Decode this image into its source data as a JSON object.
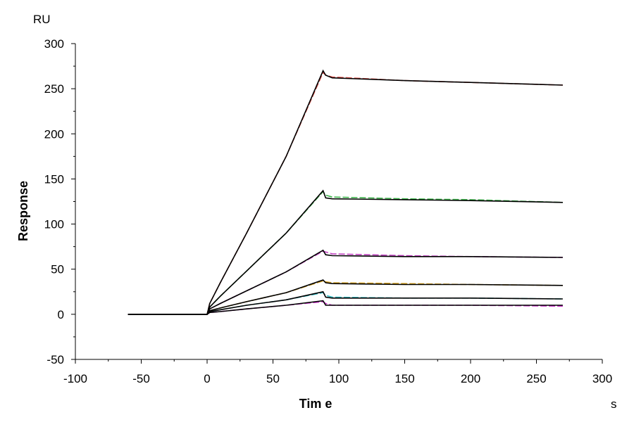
{
  "chart_data": {
    "type": "line",
    "title": "",
    "xlabel": "Tim e",
    "ylabel": "Response",
    "x_unit": "s",
    "y_unit": "RU",
    "xlim": [
      -100,
      300
    ],
    "ylim": [
      -50,
      300
    ],
    "x_ticks": [
      -100,
      -50,
      0,
      50,
      100,
      150,
      200,
      250,
      300
    ],
    "y_ticks": [
      -50,
      0,
      50,
      100,
      150,
      200,
      250,
      300
    ],
    "x_tick_labels": [
      "-100",
      "-50",
      "0",
      "50",
      "100",
      "150",
      "200",
      "250",
      "300"
    ],
    "y_tick_labels": [
      "-50",
      "0",
      "50",
      "100",
      "150",
      "200",
      "250",
      "300"
    ],
    "grid": false,
    "legend": "none",
    "series": [
      {
        "color": "#e0504a",
        "x": [
          -60,
          0,
          2,
          10,
          30,
          60,
          88,
          90,
          95,
          150,
          200,
          270
        ],
        "y": [
          0,
          0,
          12,
          35,
          90,
          175,
          268,
          265,
          263,
          259,
          257,
          254
        ]
      },
      {
        "color": "#3cb34a",
        "x": [
          -60,
          0,
          2,
          10,
          30,
          60,
          88,
          90,
          95,
          150,
          200,
          270
        ],
        "y": [
          0,
          0,
          8,
          20,
          48,
          90,
          136,
          132,
          130,
          128,
          127,
          124
        ]
      },
      {
        "color": "#c040c0",
        "x": [
          -60,
          0,
          2,
          10,
          30,
          60,
          88,
          90,
          95,
          150,
          200,
          270
        ],
        "y": [
          0,
          0,
          6,
          12,
          26,
          47,
          70,
          69,
          67,
          65,
          64,
          63
        ]
      },
      {
        "color": "#d4a020",
        "x": [
          -60,
          0,
          2,
          10,
          30,
          60,
          88,
          90,
          95,
          150,
          200,
          270
        ],
        "y": [
          0,
          0,
          4,
          7,
          14,
          24,
          37,
          36,
          35,
          34,
          33,
          32
        ]
      },
      {
        "color": "#30b8c0",
        "x": [
          -60,
          0,
          2,
          10,
          30,
          60,
          88,
          90,
          95,
          150,
          200,
          270
        ],
        "y": [
          0,
          0,
          3,
          5,
          10,
          16,
          24,
          21,
          19,
          18,
          18,
          17
        ]
      },
      {
        "color": "#cc30cc",
        "x": [
          -60,
          0,
          2,
          10,
          30,
          60,
          88,
          90,
          95,
          150,
          200,
          270
        ],
        "y": [
          0,
          0,
          2,
          3,
          6,
          10,
          14,
          12,
          10,
          10,
          10,
          9
        ]
      }
    ],
    "fits": [
      {
        "color": "#000000",
        "x": [
          -60,
          0,
          2,
          10,
          30,
          60,
          88,
          90,
          95,
          150,
          200,
          270
        ],
        "y": [
          0,
          0,
          12,
          35,
          90,
          175,
          270,
          265,
          262,
          259,
          257,
          254
        ]
      },
      {
        "color": "#000000",
        "x": [
          -60,
          0,
          2,
          10,
          30,
          60,
          88,
          90,
          95,
          150,
          200,
          270
        ],
        "y": [
          0,
          0,
          8,
          20,
          48,
          90,
          137,
          129,
          128,
          127,
          126,
          124
        ]
      },
      {
        "color": "#000000",
        "x": [
          -60,
          0,
          2,
          10,
          30,
          60,
          88,
          90,
          95,
          150,
          200,
          270
        ],
        "y": [
          0,
          0,
          6,
          12,
          26,
          47,
          71,
          66,
          65,
          64,
          64,
          63
        ]
      },
      {
        "color": "#000000",
        "x": [
          -60,
          0,
          2,
          10,
          30,
          60,
          88,
          90,
          95,
          150,
          200,
          270
        ],
        "y": [
          0,
          0,
          4,
          7,
          14,
          24,
          38,
          35,
          34,
          33,
          33,
          32
        ]
      },
      {
        "color": "#000000",
        "x": [
          -60,
          0,
          2,
          10,
          30,
          60,
          88,
          90,
          95,
          150,
          200,
          270
        ],
        "y": [
          0,
          0,
          3,
          5,
          10,
          16,
          25,
          19,
          18,
          18,
          18,
          17
        ]
      },
      {
        "color": "#000000",
        "x": [
          -60,
          0,
          2,
          10,
          30,
          60,
          88,
          90,
          95,
          150,
          200,
          270
        ],
        "y": [
          0,
          0,
          2,
          3,
          6,
          10,
          15,
          10,
          10,
          10,
          10,
          10
        ]
      }
    ]
  }
}
